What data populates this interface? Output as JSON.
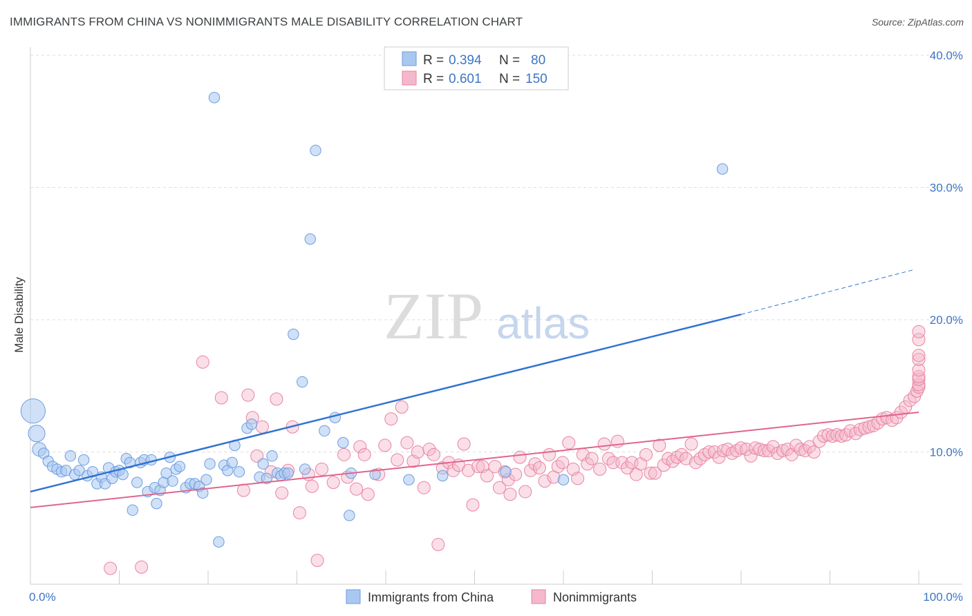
{
  "header": {
    "title": "IMMIGRANTS FROM CHINA VS NONIMMIGRANTS MALE DISABILITY CORRELATION CHART",
    "source": "Source: ZipAtlas.com"
  },
  "watermark": {
    "zip": "ZIP",
    "atlas": "atlas"
  },
  "colors": {
    "blue_fill": "#a9c8f0",
    "blue_stroke": "#6b9be0",
    "blue_line": "#2f73d1",
    "pink_fill": "#f5b7cc",
    "pink_stroke": "#e8839f",
    "pink_line": "#e0648c",
    "grid": "#dddddd",
    "tick_text": "#3d74c4"
  },
  "legend": {
    "rows": [
      {
        "r_label": "R =",
        "r_value": "0.394",
        "n_label": "N =",
        "n_value": "80"
      },
      {
        "r_label": "R =",
        "r_value": "0.601",
        "n_label": "N =",
        "n_value": "150"
      }
    ]
  },
  "bottom_legend": {
    "items": [
      {
        "label": "Immigrants from China"
      },
      {
        "label": "Nonimmigrants"
      }
    ]
  },
  "chart_data": {
    "type": "scatter",
    "title": "IMMIGRANTS FROM CHINA VS NONIMMIGRANTS MALE DISABILITY CORRELATION CHART",
    "xlabel": "",
    "ylabel": "Male Disability",
    "xlim": [
      0,
      100
    ],
    "ylim": [
      0,
      40
    ],
    "x_tick_labels": [
      "0.0%",
      "100.0%"
    ],
    "y_ticks": [
      10,
      20,
      30,
      40
    ],
    "y_tick_labels": [
      "10.0%",
      "20.0%",
      "30.0%",
      "40.0%"
    ],
    "grid": true,
    "legend_position": "top-center",
    "series": [
      {
        "name": "Immigrants from China",
        "R": 0.394,
        "N": 80,
        "trend": {
          "x": [
            0,
            80
          ],
          "y": [
            7.0,
            20.4
          ]
        },
        "trend_dashed": {
          "x": [
            80,
            100
          ],
          "y": [
            20.4,
            23.8
          ]
        },
        "points": [
          [
            0.3,
            13.1,
            1.6
          ],
          [
            0.7,
            11.4,
            1.1
          ],
          [
            1,
            10.2,
            0.9
          ],
          [
            1.5,
            9.9,
            0.7
          ],
          [
            2,
            9.3,
            0.7
          ],
          [
            2.5,
            8.9,
            0.7
          ],
          [
            3,
            8.7,
            0.7
          ],
          [
            3.5,
            8.5,
            0.7
          ],
          [
            4,
            8.6,
            0.7
          ],
          [
            4.5,
            9.7,
            0.7
          ],
          [
            5,
            8.3,
            0.7
          ],
          [
            5.5,
            8.6,
            0.7
          ],
          [
            6,
            9.4,
            0.7
          ],
          [
            6.4,
            8.2,
            0.7
          ],
          [
            7,
            8.5,
            0.7
          ],
          [
            7.5,
            7.6,
            0.7
          ],
          [
            8,
            8.1,
            0.7
          ],
          [
            8.4,
            7.6,
            0.7
          ],
          [
            8.8,
            8.8,
            0.7
          ],
          [
            9.2,
            8.0,
            0.7
          ],
          [
            9.6,
            8.5,
            0.7
          ],
          [
            10,
            8.6,
            0.7
          ],
          [
            10.4,
            8.3,
            0.7
          ],
          [
            10.8,
            9.5,
            0.7
          ],
          [
            11.2,
            9.2,
            0.7
          ],
          [
            11.5,
            5.6,
            0.7
          ],
          [
            12,
            7.7,
            0.7
          ],
          [
            12.4,
            9.2,
            0.7
          ],
          [
            12.8,
            9.4,
            0.7
          ],
          [
            13.2,
            7.0,
            0.7
          ],
          [
            13.6,
            9.4,
            0.7
          ],
          [
            14,
            7.3,
            0.7
          ],
          [
            14.2,
            6.1,
            0.7
          ],
          [
            14.6,
            7.1,
            0.7
          ],
          [
            15,
            7.7,
            0.7
          ],
          [
            15.3,
            8.4,
            0.7
          ],
          [
            15.7,
            9.6,
            0.7
          ],
          [
            16,
            7.8,
            0.7
          ],
          [
            16.4,
            8.7,
            0.7
          ],
          [
            16.8,
            8.9,
            0.7
          ],
          [
            17.5,
            7.3,
            0.7
          ],
          [
            18,
            7.6,
            0.7
          ],
          [
            18.5,
            7.6,
            0.7
          ],
          [
            19,
            7.4,
            0.7
          ],
          [
            19.4,
            6.9,
            0.7
          ],
          [
            19.8,
            7.9,
            0.7
          ],
          [
            20.2,
            9.1,
            0.7
          ],
          [
            20.7,
            36.8,
            0.7
          ],
          [
            21.2,
            3.2,
            0.7
          ],
          [
            21.8,
            9.0,
            0.7
          ],
          [
            22.2,
            8.6,
            0.7
          ],
          [
            22.7,
            9.2,
            0.7
          ],
          [
            23,
            10.5,
            0.7
          ],
          [
            23.5,
            8.5,
            0.7
          ],
          [
            24.4,
            11.8,
            0.7
          ],
          [
            24.9,
            12.1,
            0.7
          ],
          [
            25.8,
            8.1,
            0.7
          ],
          [
            26.2,
            9.1,
            0.7
          ],
          [
            26.6,
            8.0,
            0.7
          ],
          [
            27.2,
            9.7,
            0.7
          ],
          [
            27.8,
            8.4,
            0.7
          ],
          [
            28.2,
            8.2,
            0.7
          ],
          [
            28.6,
            8.4,
            0.7
          ],
          [
            29,
            8.4,
            0.7
          ],
          [
            29.6,
            18.9,
            0.7
          ],
          [
            30.6,
            15.3,
            0.7
          ],
          [
            30.9,
            8.7,
            0.7
          ],
          [
            31.5,
            26.1,
            0.7
          ],
          [
            32.1,
            32.8,
            0.7
          ],
          [
            33.1,
            11.6,
            0.7
          ],
          [
            34.3,
            12.6,
            0.7
          ],
          [
            35.2,
            10.7,
            0.7
          ],
          [
            36.1,
            8.4,
            0.7
          ],
          [
            35.9,
            5.2,
            0.7
          ],
          [
            38.8,
            8.3,
            0.7
          ],
          [
            42.6,
            7.9,
            0.7
          ],
          [
            46.4,
            8.2,
            0.7
          ],
          [
            53.5,
            8.5,
            0.7
          ],
          [
            60,
            7.9,
            0.7
          ],
          [
            77.9,
            31.4,
            0.7
          ]
        ]
      },
      {
        "name": "Nonimmigrants",
        "R": 0.601,
        "N": 150,
        "trend": {
          "x": [
            0,
            100
          ],
          "y": [
            5.8,
            13.0
          ]
        },
        "points": [
          [
            9,
            1.2
          ],
          [
            12.5,
            1.3
          ],
          [
            19.4,
            16.8
          ],
          [
            21.5,
            14.1
          ],
          [
            24,
            7.1
          ],
          [
            24.5,
            14.3
          ],
          [
            25,
            12.6
          ],
          [
            25.5,
            9.7
          ],
          [
            26.1,
            11.9
          ],
          [
            27.1,
            8.5
          ],
          [
            27.7,
            14.0
          ],
          [
            28.3,
            6.9
          ],
          [
            29,
            8.6
          ],
          [
            29.5,
            11.9
          ],
          [
            30.3,
            5.4
          ],
          [
            31.3,
            8.3
          ],
          [
            31.7,
            7.4
          ],
          [
            32.3,
            1.8
          ],
          [
            32.8,
            8.7
          ],
          [
            34.1,
            7.7
          ],
          [
            35.3,
            9.8
          ],
          [
            35.7,
            8.1
          ],
          [
            36.7,
            7.2
          ],
          [
            37.1,
            10.4
          ],
          [
            37.6,
            9.8
          ],
          [
            38,
            6.8
          ],
          [
            39.2,
            8.3
          ],
          [
            39.9,
            10.5
          ],
          [
            40.6,
            12.5
          ],
          [
            41.3,
            9.4
          ],
          [
            41.8,
            13.4
          ],
          [
            42.4,
            10.7
          ],
          [
            43.1,
            9.3
          ],
          [
            43.6,
            10.0
          ],
          [
            44.3,
            7.3
          ],
          [
            44.9,
            10.2
          ],
          [
            45.4,
            9.8
          ],
          [
            45.9,
            3.0
          ],
          [
            46.4,
            8.8
          ],
          [
            47.1,
            9.2
          ],
          [
            47.6,
            8.6
          ],
          [
            48.2,
            9.0
          ],
          [
            48.8,
            10.6
          ],
          [
            49.3,
            8.6
          ],
          [
            49.8,
            6.0
          ],
          [
            50.4,
            8.9
          ],
          [
            50.9,
            8.9
          ],
          [
            51.4,
            8.2
          ],
          [
            52.3,
            8.9
          ],
          [
            52.8,
            7.3
          ],
          [
            53.4,
            8.5
          ],
          [
            53.8,
            7.9
          ],
          [
            54,
            6.8
          ],
          [
            54.6,
            8.3
          ],
          [
            55.1,
            9.6
          ],
          [
            55.7,
            7.0
          ],
          [
            56.3,
            8.6
          ],
          [
            56.8,
            9.1
          ],
          [
            57.3,
            8.8
          ],
          [
            57.9,
            7.8
          ],
          [
            58.4,
            9.8
          ],
          [
            58.9,
            8.1
          ],
          [
            59.4,
            8.9
          ],
          [
            59.9,
            9.2
          ],
          [
            60.6,
            10.7
          ],
          [
            61.1,
            8.7
          ],
          [
            61.6,
            8.0
          ],
          [
            62.2,
            9.8
          ],
          [
            62.7,
            9.1
          ],
          [
            63.2,
            9.5
          ],
          [
            64.1,
            8.7
          ],
          [
            64.6,
            10.6
          ],
          [
            65.1,
            9.5
          ],
          [
            65.6,
            9.2
          ],
          [
            66.1,
            10.8
          ],
          [
            66.6,
            9.2
          ],
          [
            67.2,
            8.8
          ],
          [
            67.7,
            9.2
          ],
          [
            68.2,
            8.3
          ],
          [
            68.7,
            9.1
          ],
          [
            69.3,
            9.8
          ],
          [
            69.8,
            8.4
          ],
          [
            70.3,
            8.4
          ],
          [
            70.8,
            10.5
          ],
          [
            71.3,
            9.0
          ],
          [
            71.8,
            9.5
          ],
          [
            72.3,
            9.3
          ],
          [
            72.8,
            9.6
          ],
          [
            73.3,
            9.8
          ],
          [
            73.8,
            9.5
          ],
          [
            74.4,
            10.6
          ],
          [
            74.9,
            9.2
          ],
          [
            75.4,
            9.5
          ],
          [
            75.9,
            9.8
          ],
          [
            76.4,
            10.0
          ],
          [
            77,
            10.0
          ],
          [
            77.5,
            9.6
          ],
          [
            78,
            10.1
          ],
          [
            78.5,
            10.2
          ],
          [
            79,
            9.9
          ],
          [
            79.5,
            10.1
          ],
          [
            80,
            10.3
          ],
          [
            80.6,
            10.2
          ],
          [
            81.1,
            9.7
          ],
          [
            81.6,
            10.3
          ],
          [
            82.1,
            10.2
          ],
          [
            82.6,
            10.1
          ],
          [
            83.1,
            10.1
          ],
          [
            83.6,
            10.4
          ],
          [
            84.1,
            9.9
          ],
          [
            84.7,
            10.1
          ],
          [
            85.2,
            10.2
          ],
          [
            85.7,
            9.8
          ],
          [
            86.2,
            10.5
          ],
          [
            86.7,
            10.2
          ],
          [
            87.2,
            10.1
          ],
          [
            87.7,
            10.4
          ],
          [
            88.2,
            10.0
          ],
          [
            88.8,
            10.8
          ],
          [
            89.3,
            11.2
          ],
          [
            89.8,
            11.3
          ],
          [
            90.3,
            11.2
          ],
          [
            90.8,
            11.3
          ],
          [
            91.3,
            11.2
          ],
          [
            91.8,
            11.3
          ],
          [
            92.3,
            11.6
          ],
          [
            92.9,
            11.4
          ],
          [
            93.4,
            11.7
          ],
          [
            93.9,
            11.8
          ],
          [
            94.4,
            11.9
          ],
          [
            94.9,
            12.0
          ],
          [
            95.4,
            12.2
          ],
          [
            95.9,
            12.5
          ],
          [
            96.4,
            12.6
          ],
          [
            97,
            12.4
          ],
          [
            97.5,
            12.6
          ],
          [
            98,
            13.0
          ],
          [
            98.5,
            13.4
          ],
          [
            99,
            13.9
          ],
          [
            99.5,
            14.2
          ],
          [
            99.8,
            14.6
          ],
          [
            100,
            14.9
          ],
          [
            100,
            15.1
          ],
          [
            100,
            15.5
          ],
          [
            100,
            15.7
          ],
          [
            100,
            16.2
          ],
          [
            100,
            17.0
          ],
          [
            100,
            17.3
          ],
          [
            100,
            18.5
          ],
          [
            100,
            19.1
          ]
        ]
      }
    ]
  }
}
